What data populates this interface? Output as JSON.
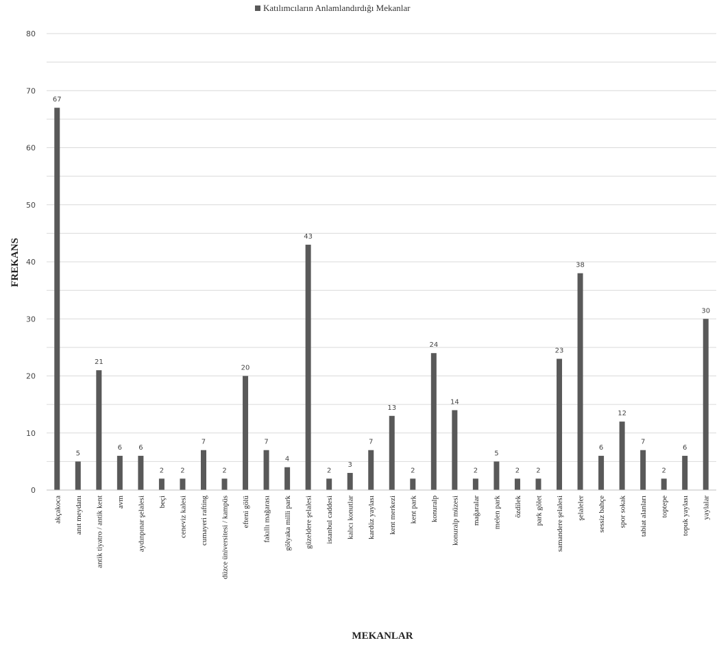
{
  "chart_data": {
    "type": "bar",
    "title": "",
    "xlabel": "MEKANLAR",
    "ylabel": "FREKANS",
    "ylim": [
      0,
      80
    ],
    "yticks": [
      0,
      10,
      20,
      30,
      40,
      50,
      60,
      70,
      80
    ],
    "grid": true,
    "legend_position": "top-center",
    "series": [
      {
        "name": "Katılımcıların Anlamlandırdığı Mekanlar",
        "color": "#595959",
        "values": [
          67,
          5,
          21,
          6,
          6,
          2,
          2,
          7,
          2,
          20,
          7,
          4,
          43,
          2,
          3,
          7,
          13,
          2,
          24,
          14,
          2,
          5,
          2,
          2,
          23,
          38,
          6,
          12,
          7,
          2,
          6,
          30
        ]
      }
    ],
    "categories": [
      "akçakoca",
      "anıt meydanı",
      "antik tiyatro / antik kent",
      "avm",
      "aydınpınar şelalesi",
      "beçi",
      "ceneviz kalesi",
      "cumayeri rafting",
      "düzce üniversitesi / kampüs",
      "efteni gölü",
      "fakıllı mağarası",
      "gölyaka milli park",
      "güzeldere şelalesi",
      "istanbul caddesi",
      "kalıcı konutlar",
      "kardüz yaylası",
      "kent merkezi",
      "kent park",
      "konuralp",
      "konuralp müzesi",
      "mağaralar",
      "melen park",
      "özdilek",
      "park gölet",
      "samandere şelalesi",
      "şelaleler",
      "sessiz bahçe",
      "spor sokak",
      "tabiat alanları",
      "toptepe",
      "topuk yaylası",
      "yaylalar"
    ]
  }
}
